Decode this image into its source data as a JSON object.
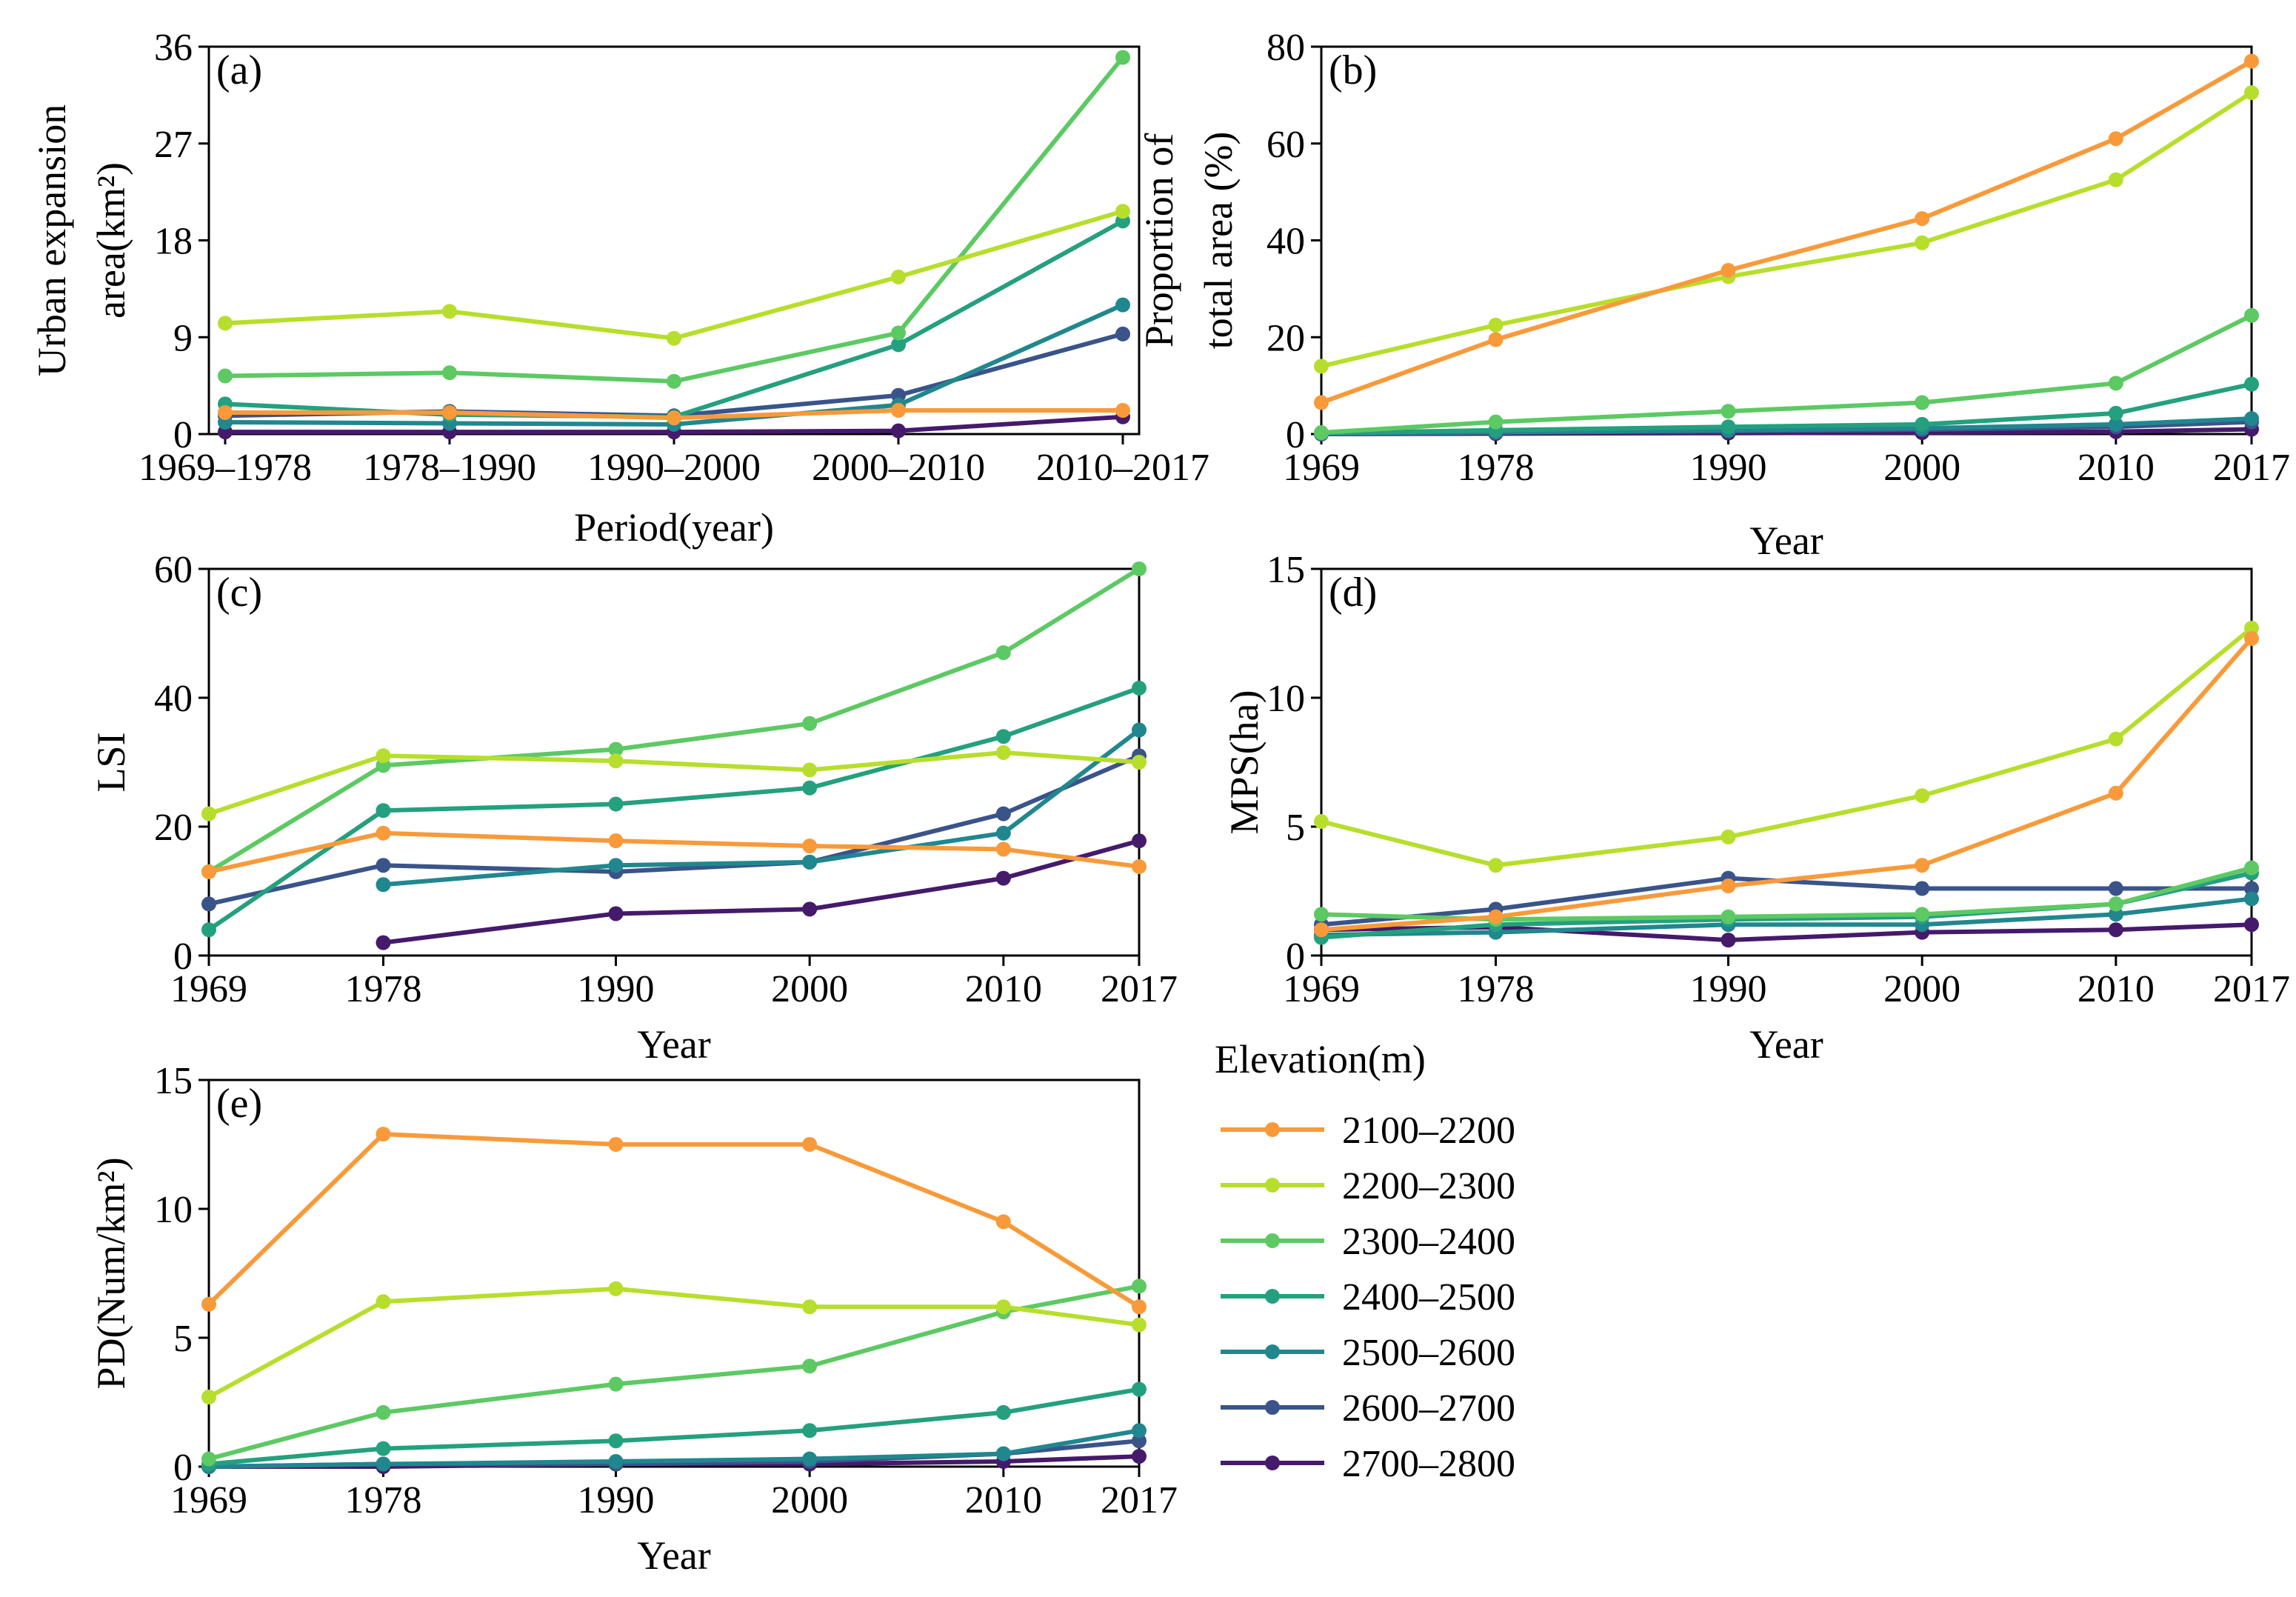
{
  "legend": {
    "title": "Elevation(m)",
    "entries": [
      "2100–2200",
      "2200–2300",
      "2300–2400",
      "2400–2500",
      "2500–2600",
      "2600–2700",
      "2700–2800"
    ],
    "colors": [
      "#F89A3A",
      "#B7DE2C",
      "#5DC963",
      "#24A07F",
      "#21878E",
      "#3A548A",
      "#451A6B"
    ]
  },
  "chart_data": [
    {
      "panel": "(a)",
      "type": "line",
      "categories": [
        "1969–1978",
        "1978–1990",
        "1990–2000",
        "2000–2010",
        "2010–2017"
      ],
      "xlabel": "Period(year)",
      "ylabel_lines": [
        "Urban expansion",
        "area(km²)"
      ],
      "ylim": [
        0,
        36
      ],
      "yticks": [
        "0",
        "9",
        "18",
        "27",
        "36"
      ],
      "series": [
        {
          "name": "2100–2200",
          "values": [
            2.0,
            2.0,
            1.5,
            2.2,
            2.2
          ]
        },
        {
          "name": "2200–2300",
          "values": [
            10.3,
            11.4,
            8.9,
            14.6,
            20.7
          ]
        },
        {
          "name": "2300–2400",
          "values": [
            5.4,
            5.7,
            4.9,
            9.4,
            35.0
          ]
        },
        {
          "name": "2400–2500",
          "values": [
            2.8,
            1.8,
            1.6,
            8.3,
            19.8
          ]
        },
        {
          "name": "2500–2600",
          "values": [
            1.1,
            1.0,
            0.9,
            2.7,
            12.0
          ]
        },
        {
          "name": "2600–2700",
          "values": [
            1.7,
            2.1,
            1.7,
            3.6,
            9.3
          ]
        },
        {
          "name": "2700–2800",
          "values": [
            0.2,
            0.2,
            0.2,
            0.3,
            1.6
          ]
        }
      ]
    },
    {
      "panel": "(b)",
      "type": "line",
      "x": [
        1969,
        1978,
        1990,
        2000,
        2010,
        2017
      ],
      "xticks": [
        "1969",
        "1978",
        "1990",
        "2000",
        "2010",
        "2017"
      ],
      "xlabel": "Year",
      "ylabel_lines": [
        "Proportion of",
        "total area (%)"
      ],
      "ylim": [
        0,
        80
      ],
      "yticks": [
        "0",
        "20",
        "40",
        "60",
        "80"
      ],
      "series": [
        {
          "name": "2100–2200",
          "values": [
            6.5,
            19.5,
            33.8,
            44.5,
            61.0,
            77.0
          ]
        },
        {
          "name": "2200–2300",
          "values": [
            14.0,
            22.5,
            32.5,
            39.5,
            52.5,
            70.5
          ]
        },
        {
          "name": "2300–2400",
          "values": [
            0.3,
            2.5,
            4.7,
            6.5,
            10.5,
            24.5
          ]
        },
        {
          "name": "2400–2500",
          "values": [
            0.2,
            0.8,
            1.5,
            2.0,
            4.3,
            10.3
          ]
        },
        {
          "name": "2500–2600",
          "values": [
            0.1,
            0.4,
            0.8,
            1.2,
            2.0,
            3.2
          ]
        },
        {
          "name": "2600–2700",
          "values": [
            0.1,
            0.3,
            0.6,
            0.9,
            1.5,
            2.5
          ]
        },
        {
          "name": "2700–2800",
          "values": [
            0.0,
            0.1,
            0.2,
            0.3,
            0.5,
            1.0
          ]
        }
      ]
    },
    {
      "panel": "(c)",
      "type": "line",
      "x": [
        1969,
        1978,
        1990,
        2000,
        2010,
        2017
      ],
      "xticks": [
        "1969",
        "1978",
        "1990",
        "2000",
        "2010",
        "2017"
      ],
      "xlabel": "Year",
      "ylabel_lines": [
        "LSI"
      ],
      "ylim": [
        0,
        60
      ],
      "yticks": [
        "0",
        "20",
        "40",
        "60"
      ],
      "series": [
        {
          "name": "2100–2200",
          "values": [
            13.0,
            19.0,
            17.8,
            17.0,
            16.5,
            13.8
          ]
        },
        {
          "name": "2200–2300",
          "values": [
            22.0,
            31.0,
            30.2,
            28.8,
            31.5,
            30.0
          ]
        },
        {
          "name": "2300–2400",
          "values": [
            13.0,
            29.5,
            32.0,
            36.0,
            47.0,
            60.0
          ]
        },
        {
          "name": "2400–2500",
          "values": [
            4.0,
            22.5,
            23.5,
            26.0,
            34.0,
            41.5
          ]
        },
        {
          "name": "2500–2600",
          "values": [
            null,
            11.0,
            14.0,
            14.5,
            19.0,
            35.0
          ]
        },
        {
          "name": "2600–2700",
          "values": [
            8.0,
            14.0,
            13.0,
            14.5,
            22.0,
            31.0
          ]
        },
        {
          "name": "2700–2800",
          "values": [
            null,
            2.0,
            6.5,
            7.2,
            12.0,
            17.8
          ]
        }
      ]
    },
    {
      "panel": "(d)",
      "type": "line",
      "x": [
        1969,
        1978,
        1990,
        2000,
        2010,
        2017
      ],
      "xticks": [
        "1969",
        "1978",
        "1990",
        "2000",
        "2010",
        "2017"
      ],
      "xlabel": "Year",
      "ylabel_lines": [
        "MPS(ha)"
      ],
      "ylim": [
        0,
        15
      ],
      "yticks": [
        "0",
        "5",
        "10",
        "15"
      ],
      "series": [
        {
          "name": "2100–2200",
          "values": [
            1.0,
            1.5,
            2.7,
            3.5,
            6.3,
            12.3
          ]
        },
        {
          "name": "2200–2300",
          "values": [
            5.2,
            3.5,
            4.6,
            6.2,
            8.4,
            12.7
          ]
        },
        {
          "name": "2300–2400",
          "values": [
            1.6,
            1.4,
            1.5,
            1.6,
            2.0,
            3.4
          ]
        },
        {
          "name": "2400–2500",
          "values": [
            0.7,
            1.2,
            1.4,
            1.5,
            2.0,
            3.2
          ]
        },
        {
          "name": "2500–2600",
          "values": [
            0.8,
            0.9,
            1.2,
            1.2,
            1.6,
            2.2
          ]
        },
        {
          "name": "2600–2700",
          "values": [
            1.2,
            1.8,
            3.0,
            2.6,
            2.6,
            2.6
          ]
        },
        {
          "name": "2700–2800",
          "values": [
            1.0,
            1.1,
            0.6,
            0.9,
            1.0,
            1.2
          ]
        }
      ]
    },
    {
      "panel": "(e)",
      "type": "line",
      "x": [
        1969,
        1978,
        1990,
        2000,
        2010,
        2017
      ],
      "xticks": [
        "1969",
        "1978",
        "1990",
        "2000",
        "2010",
        "2017"
      ],
      "xlabel": "Year",
      "ylabel_lines": [
        "PD(Num/km²)"
      ],
      "ylim": [
        0,
        15
      ],
      "yticks": [
        "0",
        "5",
        "10",
        "15"
      ],
      "series": [
        {
          "name": "2100–2200",
          "values": [
            6.3,
            12.9,
            12.5,
            12.5,
            9.5,
            6.2
          ]
        },
        {
          "name": "2200–2300",
          "values": [
            2.7,
            6.4,
            6.9,
            6.2,
            6.2,
            5.5
          ]
        },
        {
          "name": "2300–2400",
          "values": [
            0.3,
            2.1,
            3.2,
            3.9,
            6.0,
            7.0
          ]
        },
        {
          "name": "2400–2500",
          "values": [
            0.1,
            0.7,
            1.0,
            1.4,
            2.1,
            3.0
          ]
        },
        {
          "name": "2500–2600",
          "values": [
            0.0,
            0.1,
            0.2,
            0.3,
            0.5,
            1.4
          ]
        },
        {
          "name": "2600–2700",
          "values": [
            0.0,
            0.1,
            0.1,
            0.2,
            0.5,
            1.0
          ]
        },
        {
          "name": "2700–2800",
          "values": [
            0.0,
            0.0,
            0.1,
            0.1,
            0.2,
            0.4
          ]
        }
      ]
    }
  ]
}
